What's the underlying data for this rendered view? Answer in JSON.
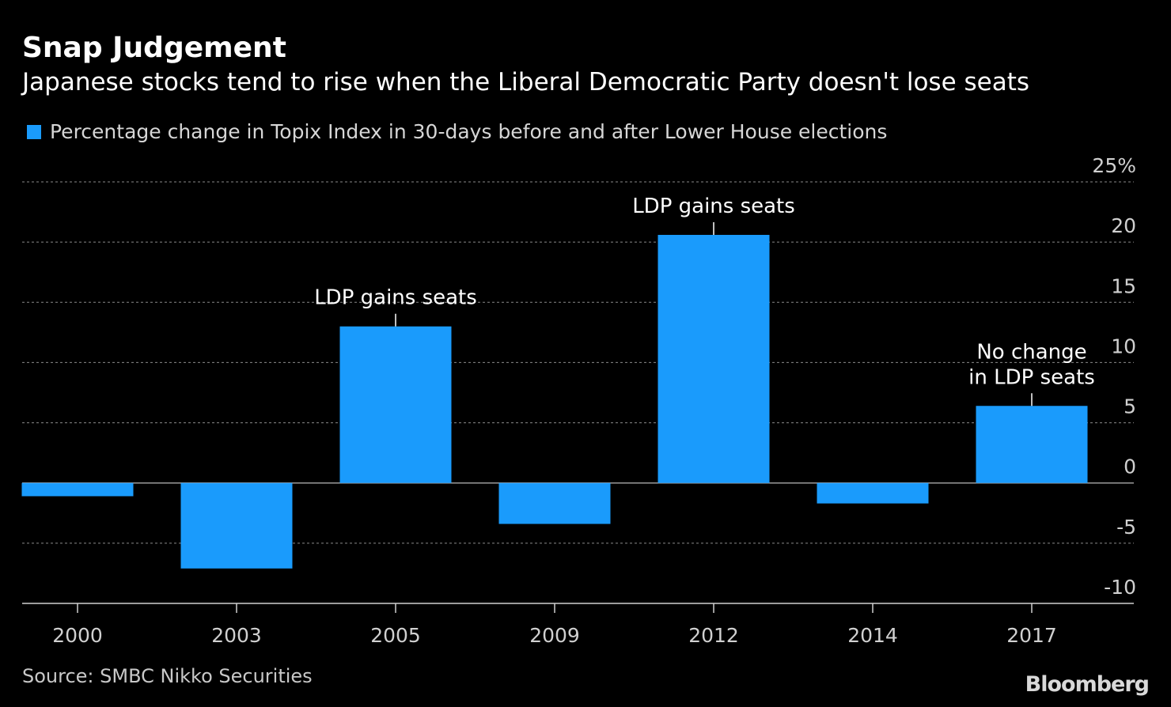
{
  "header": {
    "title": "Snap Judgement",
    "subtitle": "Japanese stocks tend to rise when the Liberal Democratic Party doesn't lose seats"
  },
  "footer": {
    "source": "Source: SMBC Nikko Securities",
    "brand": "Bloomberg"
  },
  "colors": {
    "bar": "#1a9bfc",
    "background": "#000000",
    "gridline": "#8a8a8a"
  },
  "chart_data": {
    "type": "bar",
    "categories": [
      "2000",
      "2003",
      "2005",
      "2009",
      "2012",
      "2014",
      "2017"
    ],
    "series": [
      {
        "name": "Percentage change in Topix Index in 30-days before and after Lower House elections",
        "values": [
          -1.1,
          -7.1,
          13.0,
          -3.4,
          20.6,
          -1.7,
          6.4
        ]
      }
    ],
    "ylim": [
      -10,
      25
    ],
    "yticks": [
      {
        "value": 25,
        "label": "25%"
      },
      {
        "value": 20,
        "label": "20"
      },
      {
        "value": 15,
        "label": "15"
      },
      {
        "value": 10,
        "label": "10"
      },
      {
        "value": 5,
        "label": "5"
      },
      {
        "value": 0,
        "label": "0"
      },
      {
        "value": -5,
        "label": "-5"
      },
      {
        "value": -10,
        "label": "-10"
      }
    ],
    "grid": true,
    "y_axis_side": "right",
    "legend_placement": "top-left",
    "annotations": [
      {
        "category": "2005",
        "lines": [
          "LDP gains seats"
        ]
      },
      {
        "category": "2012",
        "lines": [
          "LDP gains seats"
        ]
      },
      {
        "category": "2017",
        "lines": [
          "No change",
          "in LDP seats"
        ]
      }
    ]
  }
}
